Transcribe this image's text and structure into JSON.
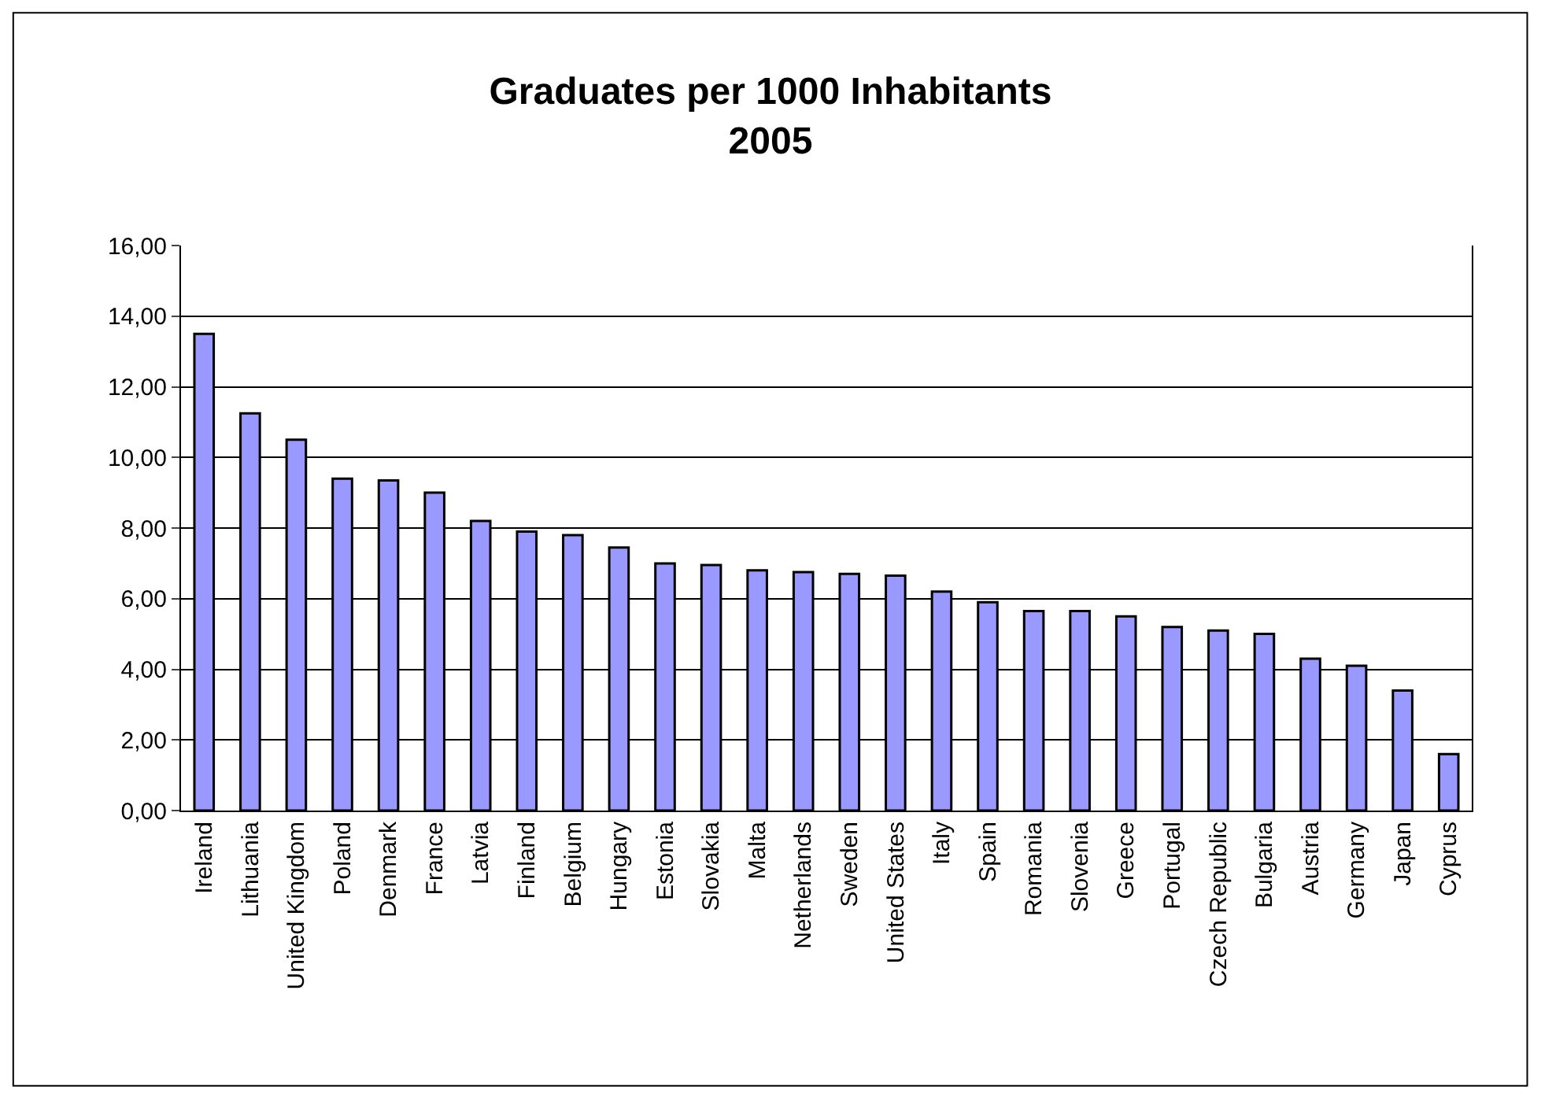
{
  "chart_data": {
    "type": "bar",
    "title": "Graduates per 1000 Inhabitants\n2005",
    "categories": [
      "Ireland",
      "Lithuania",
      "United Kingdom",
      "Poland",
      "Denmark",
      "France",
      "Latvia",
      "Finland",
      "Belgium",
      "Hungary",
      "Estonia",
      "Slovakia",
      "Malta",
      "Netherlands",
      "Sweden",
      "United States",
      "Italy",
      "Spain",
      "Romania",
      "Slovenia",
      "Greece",
      "Portugal",
      "Czech Republic",
      "Bulgaria",
      "Austria",
      "Germany",
      "Japan",
      "Cyprus"
    ],
    "values": [
      13.5,
      11.25,
      10.5,
      9.4,
      9.35,
      9.0,
      8.2,
      7.9,
      7.8,
      7.45,
      7.0,
      6.95,
      6.8,
      6.75,
      6.7,
      6.65,
      6.2,
      5.9,
      5.65,
      5.65,
      5.5,
      5.2,
      5.1,
      5.0,
      4.3,
      4.1,
      3.4,
      1.6
    ],
    "color": "#9999ff",
    "ylim": [
      0,
      16
    ],
    "yticks": [
      {
        "value": 0,
        "label": "0,00"
      },
      {
        "value": 2,
        "label": "2,00"
      },
      {
        "value": 4,
        "label": "4,00"
      },
      {
        "value": 6,
        "label": "6,00"
      },
      {
        "value": 8,
        "label": "8,00"
      },
      {
        "value": 10,
        "label": "10,00"
      },
      {
        "value": 12,
        "label": "12,00"
      },
      {
        "value": 14,
        "label": "14,00"
      },
      {
        "value": 16,
        "label": "16,00"
      }
    ],
    "grid": "y",
    "legend": false
  }
}
